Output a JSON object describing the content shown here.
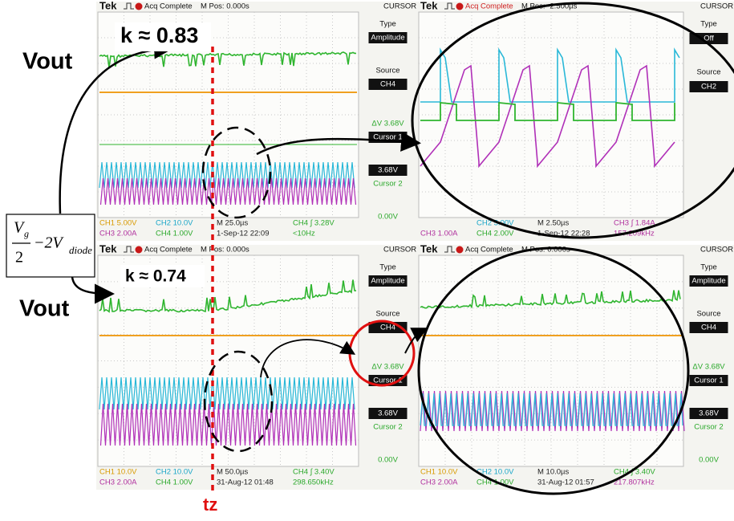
{
  "annotations": {
    "k_top": "k ≈ 0.83",
    "k_bottom": "k ≈ 0.74",
    "vout_top": "Vout",
    "vout_bottom": "Vout",
    "tz": "tz",
    "formula": {
      "numerator": "V",
      "numerator_sub": "g",
      "denominator": "2",
      "rest": "−2V",
      "rest_sub": "diode"
    }
  },
  "panels": [
    {
      "header": [
        "Tek",
        "Acq Complete",
        "M Pos: 0.000s",
        "CURSOR"
      ],
      "menu": [
        {
          "text": "Type",
          "style": "plain"
        },
        {
          "text": "Amplitude",
          "style": "inverse"
        },
        {
          "text": "Source",
          "style": "plain"
        },
        {
          "text": "CH4",
          "style": "inverse"
        },
        {
          "text": "ΔV 3.68V",
          "style": "green"
        },
        {
          "text": "Cursor 1",
          "style": "inverse"
        },
        {
          "text": "3.68V",
          "style": "inverse"
        },
        {
          "text": "Cursor 2",
          "style": "green"
        },
        {
          "text": "0.00V",
          "style": "green"
        }
      ],
      "footer": [
        [
          {
            "text": "CH1 5.00V",
            "color": "#d89a00"
          },
          {
            "text": "CH2 10.0V",
            "color": "#1aa6c8"
          },
          {
            "text": "M 25.0µs",
            "color": "#222222"
          },
          {
            "text": "CH4 ∫ 3.28V",
            "color": "#2aa82a"
          }
        ],
        [
          {
            "text": "CH3 2.00A",
            "color": "#b0309e"
          },
          {
            "text": "CH4 1.00V",
            "color": "#2aa82a"
          },
          {
            "text": "1-Sep-12 22:09",
            "color": "#222222"
          },
          {
            "text": "<10Hz",
            "color": "#2aa82a"
          }
        ]
      ]
    },
    {
      "header": [
        "Tek",
        "Acq Complete",
        "M Pos: -2.500µs",
        "CURSOR"
      ],
      "menu": [
        {
          "text": "Type",
          "style": "plain"
        },
        {
          "text": "Off",
          "style": "inverse"
        },
        {
          "text": "Source",
          "style": "plain"
        },
        {
          "text": "CH2",
          "style": "inverse"
        }
      ],
      "footer": [
        [
          {
            "text": "CH2 5.00V",
            "color": "#1aa6c8"
          },
          {
            "text": "M 2.50µs",
            "color": "#222222"
          },
          {
            "text": "CH3 ∫ 1.84A",
            "color": "#b0309e"
          }
        ],
        [
          {
            "text": "CH3 1.00A",
            "color": "#b0309e"
          },
          {
            "text": "CH4 2.00V",
            "color": "#2aa82a"
          },
          {
            "text": "1-Sep-12 22:28",
            "color": "#222222"
          },
          {
            "text": "157.209kHz",
            "color": "#b0309e"
          }
        ]
      ]
    },
    {
      "header": [
        "Tek",
        "Acq Complete",
        "M Pos: 0.000s",
        "CURSOR"
      ],
      "menu": [
        {
          "text": "Type",
          "style": "plain"
        },
        {
          "text": "Amplitude",
          "style": "inverse"
        },
        {
          "text": "Source",
          "style": "plain"
        },
        {
          "text": "CH4",
          "style": "inverse"
        },
        {
          "text": "ΔV 3.68V",
          "style": "green"
        },
        {
          "text": "Cursor 1",
          "style": "inverse"
        },
        {
          "text": "3.68V",
          "style": "inverse"
        },
        {
          "text": "Cursor 2",
          "style": "green"
        },
        {
          "text": "0.00V",
          "style": "green"
        }
      ],
      "footer": [
        [
          {
            "text": "CH1 10.0V",
            "color": "#d89a00"
          },
          {
            "text": "CH2 10.0V",
            "color": "#1aa6c8"
          },
          {
            "text": "M 50.0µs",
            "color": "#222222"
          },
          {
            "text": "CH4 ∫ 3.40V",
            "color": "#2aa82a"
          }
        ],
        [
          {
            "text": "CH3 2.00A",
            "color": "#b0309e"
          },
          {
            "text": "CH4 1.00V",
            "color": "#2aa82a"
          },
          {
            "text": "31-Aug-12 01:48",
            "color": "#222222"
          },
          {
            "text": "298.650kHz",
            "color": "#2aa82a"
          }
        ]
      ]
    },
    {
      "header": [
        "Tek",
        "Acq Complete",
        "M Pos: 0.000s",
        "CURSOR"
      ],
      "menu": [
        {
          "text": "Type",
          "style": "plain"
        },
        {
          "text": "Amplitude",
          "style": "inverse"
        },
        {
          "text": "Source",
          "style": "plain"
        },
        {
          "text": "CH4",
          "style": "inverse"
        },
        {
          "text": "ΔV 3.68V",
          "style": "green"
        },
        {
          "text": "Cursor 1",
          "style": "inverse"
        },
        {
          "text": "3.68V",
          "style": "inverse"
        },
        {
          "text": "Cursor 2",
          "style": "green"
        },
        {
          "text": "0.00V",
          "style": "green"
        }
      ],
      "footer": [
        [
          {
            "text": "CH1 10.0V",
            "color": "#d89a00"
          },
          {
            "text": "CH2 10.0V",
            "color": "#1aa6c8"
          },
          {
            "text": "M 10.0µs",
            "color": "#222222"
          },
          {
            "text": "CH4 ∫ 3.40V",
            "color": "#2aa82a"
          }
        ],
        [
          {
            "text": "CH3 2.00A",
            "color": "#b0309e"
          },
          {
            "text": "CH4 1.00V",
            "color": "#2aa82a"
          },
          {
            "text": "31-Aug-12 01:57",
            "color": "#222222"
          },
          {
            "text": "217.807kHz",
            "color": "#b0309e"
          }
        ]
      ]
    }
  ]
}
